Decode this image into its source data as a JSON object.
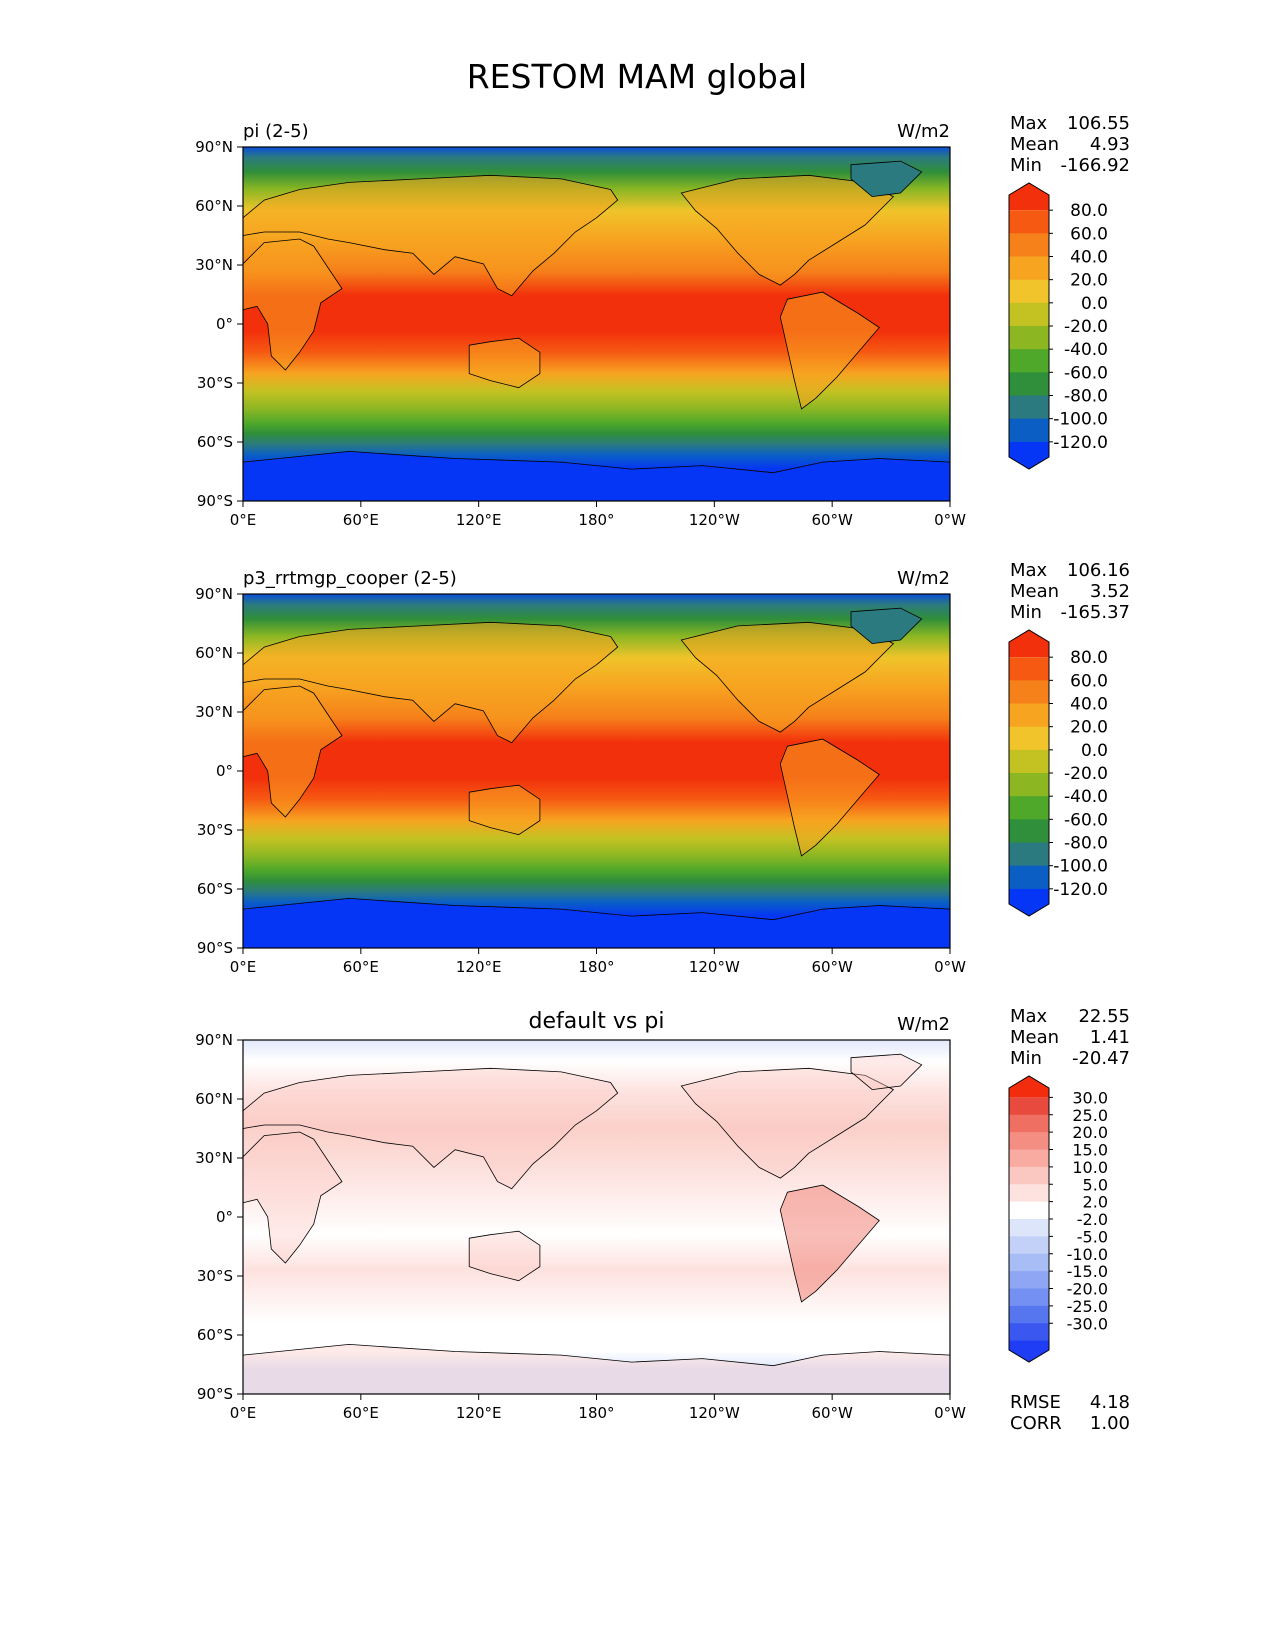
{
  "title": "RESTOM MAM global",
  "lat_ticks": [
    "90°N",
    "60°N",
    "30°N",
    "0°",
    "30°S",
    "60°S",
    "90°S"
  ],
  "lon_ticks": [
    "0°E",
    "60°E",
    "120°E",
    "180°",
    "120°W",
    "60°W",
    "0°W"
  ],
  "colors": {
    "abs_levels": [
      "#0535f5",
      "#0b5fc4",
      "#2b7a7f",
      "#2f8f3a",
      "#4fa82a",
      "#8cb723",
      "#c4c222",
      "#f0c42a",
      "#f7a421",
      "#f6801a",
      "#f65a12",
      "#f2300c"
    ],
    "diff_levels": [
      "#1f3df5",
      "#3a57f0",
      "#5676ef",
      "#7390f2",
      "#8fa6f4",
      "#a8bcf6",
      "#c3d1f9",
      "#dde5fb",
      "#ffffff",
      "#fde2df",
      "#fbc7c1",
      "#f9aba1",
      "#f48e82",
      "#ef6f62",
      "#e84b3e",
      "#f22c0c"
    ],
    "land_outline": "#000000"
  },
  "panels": [
    {
      "name": "pi",
      "title_left": "pi (2-5)",
      "title_center": "",
      "units": "W/m2",
      "stats": [
        {
          "label": "Max",
          "value": "106.55"
        },
        {
          "label": "Mean",
          "value": "4.93"
        },
        {
          "label": "Min",
          "value": "-166.92"
        }
      ],
      "colorbar_labels": [
        "80.0",
        "60.0",
        "40.0",
        "20.0",
        "0.0",
        "-20.0",
        "-40.0",
        "-60.0",
        "-80.0",
        "-100.0",
        "-120.0"
      ],
      "extra_stats": []
    },
    {
      "name": "p3_rrtmgp_cooper",
      "title_left": "p3_rrtmgp_cooper (2-5)",
      "title_center": "",
      "units": "W/m2",
      "stats": [
        {
          "label": "Max",
          "value": "106.16"
        },
        {
          "label": "Mean",
          "value": "3.52"
        },
        {
          "label": "Min",
          "value": "-165.37"
        }
      ],
      "colorbar_labels": [
        "80.0",
        "60.0",
        "40.0",
        "20.0",
        "0.0",
        "-20.0",
        "-40.0",
        "-60.0",
        "-80.0",
        "-100.0",
        "-120.0"
      ],
      "extra_stats": []
    },
    {
      "name": "difference",
      "title_left": "",
      "title_center": "default vs pi",
      "units": "W/m2",
      "stats": [
        {
          "label": "Max",
          "value": "22.55"
        },
        {
          "label": "Mean",
          "value": "1.41"
        },
        {
          "label": "Min",
          "value": "-20.47"
        }
      ],
      "colorbar_labels": [
        "30.0",
        "25.0",
        "20.0",
        "15.0",
        "10.0",
        "5.0",
        "2.0",
        "-2.0",
        "-5.0",
        "-10.0",
        "-15.0",
        "-20.0",
        "-25.0",
        "-30.0"
      ],
      "extra_stats": [
        {
          "label": "RMSE",
          "value": "4.18"
        },
        {
          "label": "CORR",
          "value": "1.00"
        }
      ]
    }
  ]
}
